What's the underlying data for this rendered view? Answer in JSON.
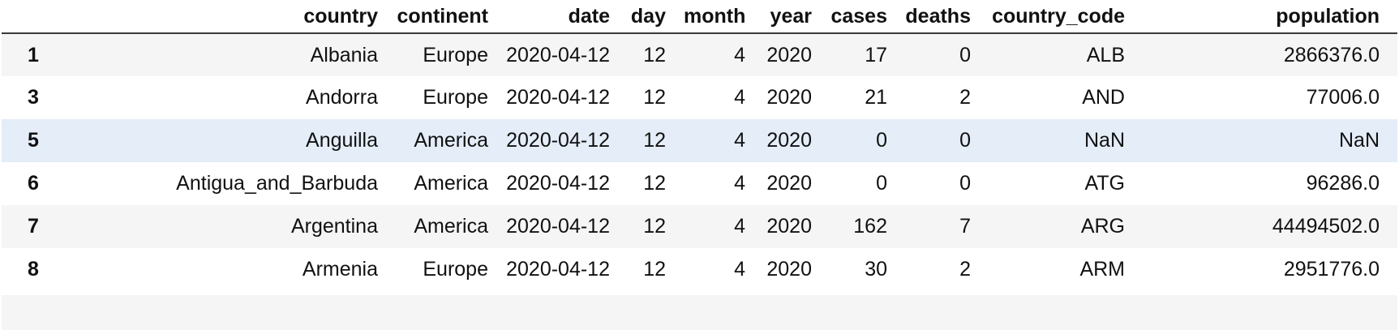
{
  "table": {
    "index_header": "",
    "columns": [
      "country",
      "continent",
      "date",
      "day",
      "month",
      "year",
      "cases",
      "deaths",
      "country_code",
      "population"
    ],
    "highlighted_row": 2,
    "rows": [
      {
        "index": "1",
        "cells": [
          "Albania",
          "Europe",
          "2020-04-12",
          "12",
          "4",
          "2020",
          "17",
          "0",
          "ALB",
          "2866376.0"
        ]
      },
      {
        "index": "3",
        "cells": [
          "Andorra",
          "Europe",
          "2020-04-12",
          "12",
          "4",
          "2020",
          "21",
          "2",
          "AND",
          "77006.0"
        ]
      },
      {
        "index": "5",
        "cells": [
          "Anguilla",
          "America",
          "2020-04-12",
          "12",
          "4",
          "2020",
          "0",
          "0",
          "NaN",
          "NaN"
        ]
      },
      {
        "index": "6",
        "cells": [
          "Antigua_and_Barbuda",
          "America",
          "2020-04-12",
          "12",
          "4",
          "2020",
          "0",
          "0",
          "ATG",
          "96286.0"
        ]
      },
      {
        "index": "7",
        "cells": [
          "Argentina",
          "America",
          "2020-04-12",
          "12",
          "4",
          "2020",
          "162",
          "7",
          "ARG",
          "44494502.0"
        ]
      },
      {
        "index": "8",
        "cells": [
          "Armenia",
          "Europe",
          "2020-04-12",
          "12",
          "4",
          "2020",
          "30",
          "2",
          "ARM",
          "2951776.0"
        ]
      }
    ]
  }
}
